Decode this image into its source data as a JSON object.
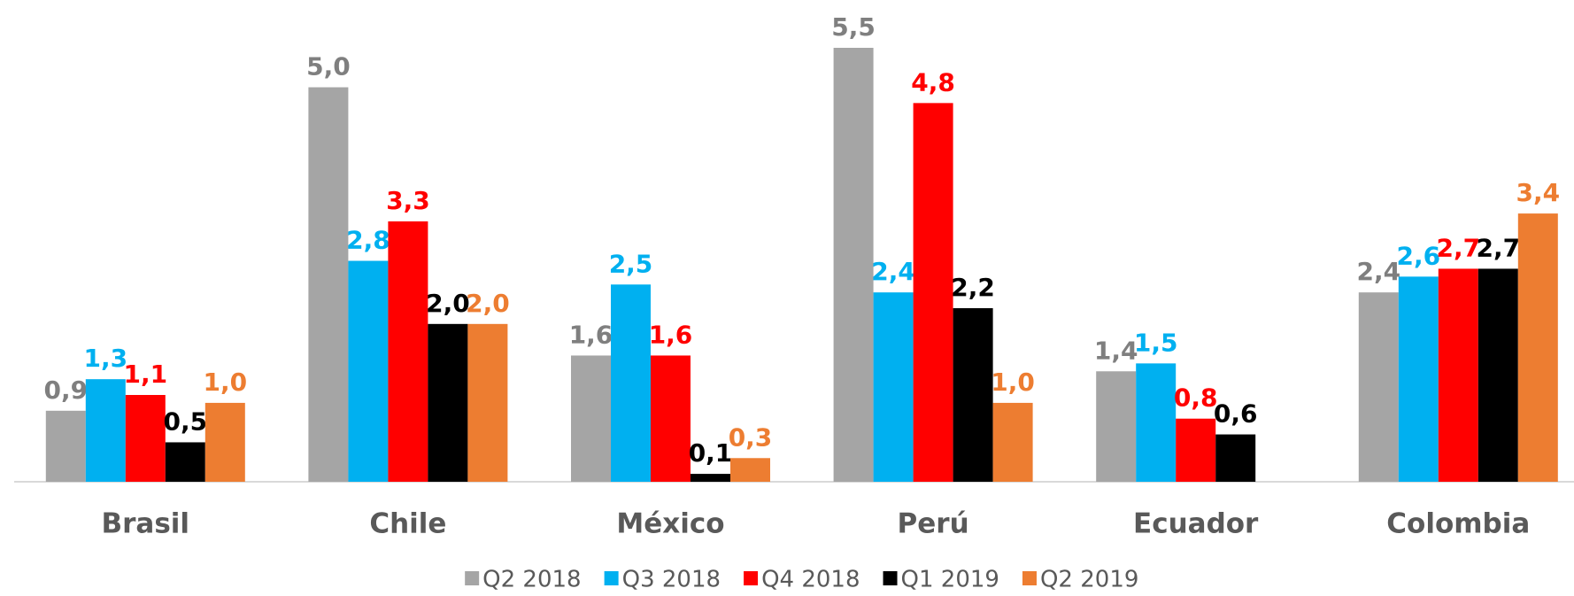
{
  "chart_data": {
    "type": "bar",
    "categories": [
      "Brasil",
      "Chile",
      "México",
      "Perú",
      "Ecuador",
      "Colombia"
    ],
    "series": [
      {
        "name": "Q2 2018",
        "color": "#a5a5a5",
        "label_color": "#7f7f7f",
        "values": [
          0.9,
          5.0,
          1.6,
          5.5,
          1.4,
          2.4
        ],
        "value_labels": [
          "0,9",
          "5,0",
          "1,6",
          "5,5",
          "1,4",
          "2,4"
        ]
      },
      {
        "name": "Q3 2018",
        "color": "#00b0f0",
        "label_color": "#00b0f0",
        "values": [
          1.3,
          2.8,
          2.5,
          2.4,
          1.5,
          2.6
        ],
        "value_labels": [
          "1,3",
          "2,8",
          "2,5",
          "2,4",
          "1,5",
          "2,6"
        ]
      },
      {
        "name": "Q4 2018",
        "color": "#ff0000",
        "label_color": "#ff0000",
        "values": [
          1.1,
          3.3,
          1.6,
          4.8,
          0.8,
          2.7
        ],
        "value_labels": [
          "1,1",
          "3,3",
          "1,6",
          "4,8",
          "0,8",
          "2,7"
        ]
      },
      {
        "name": "Q1 2019",
        "color": "#000000",
        "label_color": "#000000",
        "values": [
          0.5,
          2.0,
          0.1,
          2.2,
          0.6,
          2.7
        ],
        "value_labels": [
          "0,5",
          "2,0",
          "0,1",
          "2,2",
          "0,6",
          "2,7"
        ]
      },
      {
        "name": "Q2 2019",
        "color": "#ed7d31",
        "label_color": "#ed7d31",
        "values": [
          1.0,
          2.0,
          0.3,
          1.0,
          null,
          3.4
        ],
        "value_labels": [
          "1,0",
          "2,0",
          "0,3",
          "1,0",
          null,
          "3,4"
        ]
      }
    ],
    "legend": "bottom"
  }
}
